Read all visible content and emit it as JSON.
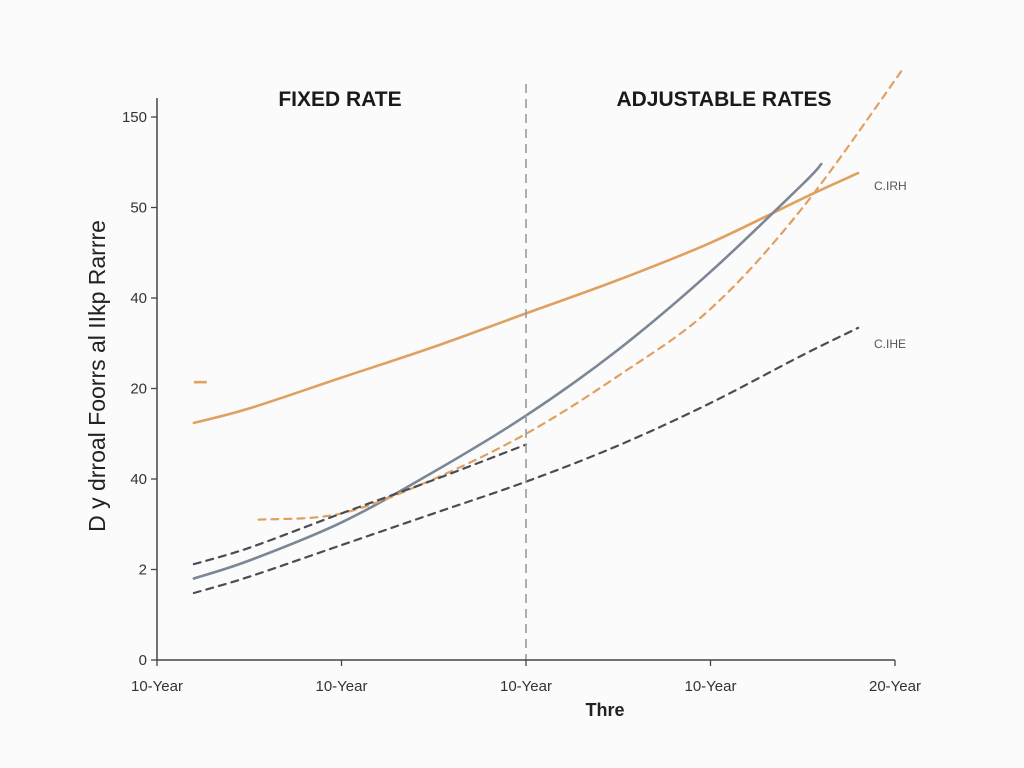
{
  "chart_data": {
    "type": "line",
    "title": "",
    "regions": [
      {
        "label": "FIXED RATE"
      },
      {
        "label": "ADJUSTABLE RATES"
      }
    ],
    "divider_x": 2,
    "xlabel": "Thre",
    "ylabel": "D y drroal Foorrs al IIkp Rarrre",
    "x_ticks": [
      {
        "x": 0,
        "label": "10-Year"
      },
      {
        "x": 1,
        "label": "10-Year"
      },
      {
        "x": 2,
        "label": "10-Year"
      },
      {
        "x": 3,
        "label": "10-Year"
      },
      {
        "x": 4,
        "label": "20-Year"
      }
    ],
    "y_ticks": [
      {
        "pos": 0,
        "label": "0"
      },
      {
        "pos": 1,
        "label": "2"
      },
      {
        "pos": 2,
        "label": "40"
      },
      {
        "pos": 3,
        "label": "20"
      },
      {
        "pos": 4,
        "label": "40"
      },
      {
        "pos": 5,
        "label": "50"
      },
      {
        "pos": 6,
        "label": "150"
      }
    ],
    "xlim": [
      0,
      4
    ],
    "ylim": [
      0,
      6
    ],
    "grid": false,
    "series": [
      {
        "name": "",
        "color": "#e0a060",
        "style": "solid",
        "x": [
          0.2,
          0.5,
          1.0,
          1.5,
          2.0,
          2.5,
          3.0,
          3.5,
          3.8
        ],
        "y": [
          2.62,
          2.78,
          3.12,
          3.46,
          3.83,
          4.2,
          4.61,
          5.1,
          5.38
        ],
        "start_segment": {
          "x": [
            0.2,
            0.27
          ],
          "y": [
            3.07,
            3.07
          ]
        }
      },
      {
        "name": "C.IRH",
        "color": "#7c8796",
        "style": "solid",
        "x": [
          0.2,
          0.5,
          1.0,
          1.5,
          2.0,
          2.5,
          3.0,
          3.5,
          3.6
        ],
        "y": [
          0.9,
          1.1,
          1.52,
          2.08,
          2.7,
          3.43,
          4.29,
          5.26,
          5.48
        ]
      },
      {
        "name": "",
        "color": "#e0a060",
        "style": "dashed",
        "x": [
          0.55,
          1.0,
          1.5,
          2.0,
          2.5,
          3.0,
          3.5,
          4.05
        ],
        "y": [
          1.55,
          1.62,
          2.0,
          2.5,
          3.14,
          3.88,
          5.0,
          6.55
        ]
      },
      {
        "name": "",
        "color": "#4a4d55",
        "style": "dashed",
        "x": [
          0.2,
          0.5,
          1.0,
          1.5,
          2.0
        ],
        "y": [
          1.06,
          1.24,
          1.62,
          1.99,
          2.38
        ]
      },
      {
        "name": "C.IHE",
        "color": "#4a4d55",
        "style": "dashed",
        "x": [
          0.2,
          0.5,
          1.0,
          1.5,
          2.0,
          2.5,
          3.0,
          3.5,
          3.8
        ],
        "y": [
          0.74,
          0.92,
          1.27,
          1.62,
          1.97,
          2.37,
          2.84,
          3.37,
          3.67
        ]
      }
    ]
  }
}
